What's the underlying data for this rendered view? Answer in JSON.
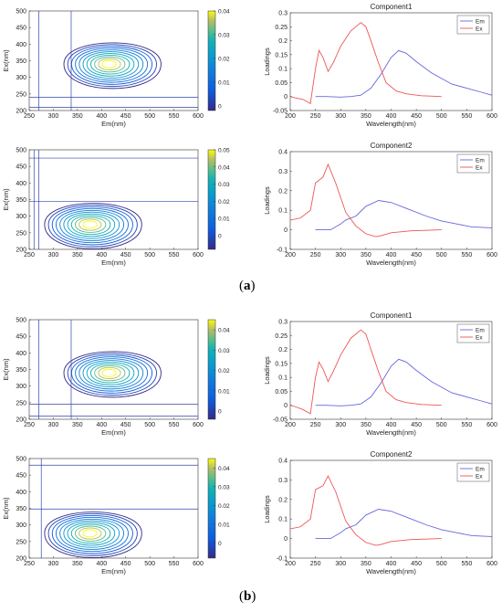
{
  "panel_labels": {
    "a": "a",
    "b": "b"
  },
  "chart_data": [
    {
      "type": "contour",
      "xlabel": "Em(nm)",
      "ylabel": "Ex(nm)",
      "xlim": [
        250,
        600
      ],
      "ylim": [
        200,
        500
      ],
      "xticks": [
        250,
        300,
        350,
        400,
        450,
        500,
        550,
        600
      ],
      "yticks": [
        200,
        250,
        300,
        350,
        400,
        450,
        500
      ],
      "colorbar": {
        "ticks": [
          "0",
          "0.01",
          "0.02",
          "0.03",
          "0.04"
        ],
        "range": [
          -0.002,
          0.04
        ]
      },
      "peak": {
        "em": 415,
        "ex": 340
      },
      "v_lines": [
        270,
        337
      ],
      "h_lines": [
        240,
        210
      ]
    },
    {
      "type": "line",
      "title": "Component1",
      "xlabel": "Wavelength(nm)",
      "ylabel": "Loadings",
      "xlim": [
        200,
        600
      ],
      "ylim": [
        -0.05,
        0.3
      ],
      "xticks": [
        200,
        250,
        300,
        350,
        400,
        450,
        500,
        550,
        600
      ],
      "yticks": [
        "-0.05",
        "0",
        "0.05",
        "0.1",
        "0.15",
        "0.2",
        "0.25",
        "0.3"
      ],
      "legend_position": "top-right",
      "series": [
        {
          "name": "Em",
          "color": "#6666dd",
          "x": [
            250,
            270,
            300,
            320,
            340,
            360,
            380,
            400,
            415,
            430,
            450,
            480,
            500,
            520,
            550,
            580,
            600
          ],
          "y": [
            0.0,
            0.0,
            -0.002,
            0.0,
            0.005,
            0.03,
            0.08,
            0.14,
            0.165,
            0.155,
            0.125,
            0.085,
            0.065,
            0.045,
            0.03,
            0.015,
            0.005
          ]
        },
        {
          "name": "Ex",
          "color": "#ee5555",
          "x": [
            200,
            210,
            225,
            240,
            250,
            257,
            265,
            275,
            285,
            300,
            320,
            340,
            350,
            360,
            375,
            390,
            410,
            430,
            460,
            500
          ],
          "y": [
            0.0,
            -0.005,
            -0.01,
            -0.025,
            0.1,
            0.165,
            0.14,
            0.09,
            0.12,
            0.18,
            0.235,
            0.265,
            0.25,
            0.2,
            0.12,
            0.05,
            0.02,
            0.01,
            0.003,
            0.0
          ]
        }
      ]
    },
    {
      "type": "contour",
      "xlabel": "Em(nm)",
      "ylabel": "Ex(nm)",
      "xlim": [
        250,
        600
      ],
      "ylim": [
        200,
        500
      ],
      "xticks": [
        250,
        300,
        350,
        400,
        450,
        500,
        550,
        600
      ],
      "yticks": [
        200,
        250,
        300,
        350,
        400,
        450,
        500
      ],
      "colorbar": {
        "ticks": [
          "0",
          "0.01",
          "0.02",
          "0.03",
          "0.04",
          "0.05"
        ],
        "range": [
          -0.008,
          0.05
        ]
      },
      "peak": {
        "em": 375,
        "ex": 275
      },
      "v_lines": [
        260,
        270
      ],
      "h_lines": [
        475,
        345
      ]
    },
    {
      "type": "line",
      "title": "Component2",
      "xlabel": "Wavelength(nm)",
      "ylabel": "Loadings",
      "xlim": [
        200,
        600
      ],
      "ylim": [
        -0.1,
        0.4
      ],
      "xticks": [
        200,
        250,
        300,
        350,
        400,
        450,
        500,
        550,
        600
      ],
      "yticks": [
        "-0.1",
        "0",
        "0.1",
        "0.2",
        "0.3",
        "0.4"
      ],
      "legend_position": "top-right",
      "series": [
        {
          "name": "Em",
          "color": "#6666dd",
          "x": [
            250,
            280,
            300,
            310,
            330,
            350,
            375,
            400,
            430,
            470,
            500,
            530,
            560,
            600
          ],
          "y": [
            0.0,
            0.0,
            0.03,
            0.05,
            0.07,
            0.12,
            0.15,
            0.14,
            0.11,
            0.07,
            0.045,
            0.03,
            0.015,
            0.01
          ]
        },
        {
          "name": "Ex",
          "color": "#ee5555",
          "x": [
            200,
            220,
            240,
            250,
            265,
            275,
            290,
            310,
            330,
            350,
            370,
            380,
            400,
            440,
            500
          ],
          "y": [
            0.05,
            0.06,
            0.1,
            0.24,
            0.27,
            0.335,
            0.24,
            0.09,
            0.02,
            -0.02,
            -0.035,
            -0.03,
            -0.015,
            -0.005,
            0.0
          ]
        }
      ]
    },
    {
      "type": "contour",
      "xlabel": "Em(nm)",
      "ylabel": "Ex(nm)",
      "xlim": [
        250,
        600
      ],
      "ylim": [
        200,
        500
      ],
      "xticks": [
        250,
        300,
        350,
        400,
        450,
        500,
        550,
        600
      ],
      "yticks": [
        200,
        250,
        300,
        350,
        400,
        450,
        500
      ],
      "colorbar": {
        "ticks": [
          "0",
          "0.01",
          "0.02",
          "0.03",
          "0.04"
        ],
        "range": [
          -0.004,
          0.045
        ]
      },
      "peak": {
        "em": 415,
        "ex": 340
      },
      "v_lines": [
        270,
        337
      ],
      "h_lines": [
        245,
        210
      ]
    },
    {
      "type": "line",
      "title": "Component1",
      "xlabel": "Wavelength(nm)",
      "ylabel": "Loadings",
      "xlim": [
        200,
        600
      ],
      "ylim": [
        -0.05,
        0.3
      ],
      "xticks": [
        200,
        250,
        300,
        350,
        400,
        450,
        500,
        550,
        600
      ],
      "yticks": [
        "-0.05",
        "0",
        "0.05",
        "0.1",
        "0.15",
        "0.2",
        "0.25",
        "0.3"
      ],
      "legend_position": "top-right",
      "series": [
        {
          "name": "Em",
          "color": "#6666dd",
          "x": [
            250,
            270,
            300,
            320,
            340,
            360,
            380,
            400,
            415,
            430,
            450,
            480,
            500,
            520,
            550,
            580,
            600
          ],
          "y": [
            0.0,
            0.0,
            -0.002,
            0.0,
            0.005,
            0.03,
            0.08,
            0.14,
            0.165,
            0.155,
            0.125,
            0.085,
            0.065,
            0.045,
            0.03,
            0.015,
            0.005
          ]
        },
        {
          "name": "Ex",
          "color": "#ee5555",
          "x": [
            200,
            210,
            225,
            240,
            250,
            257,
            265,
            275,
            285,
            300,
            320,
            340,
            350,
            360,
            375,
            390,
            410,
            430,
            460,
            500
          ],
          "y": [
            0.0,
            -0.005,
            -0.015,
            -0.03,
            0.1,
            0.155,
            0.13,
            0.085,
            0.12,
            0.18,
            0.24,
            0.27,
            0.255,
            0.2,
            0.12,
            0.05,
            0.02,
            0.01,
            0.003,
            0.0
          ]
        }
      ]
    },
    {
      "type": "contour",
      "xlabel": "Em(nm)",
      "ylabel": "Ex(nm)",
      "xlim": [
        250,
        600
      ],
      "ylim": [
        200,
        500
      ],
      "xticks": [
        250,
        300,
        350,
        400,
        450,
        500,
        550,
        600
      ],
      "yticks": [
        200,
        250,
        300,
        350,
        400,
        450,
        500
      ],
      "colorbar": {
        "ticks": [
          "0",
          "0.01",
          "0.02",
          "0.03",
          "0.04"
        ],
        "range": [
          -0.008,
          0.045
        ]
      },
      "peak": {
        "em": 375,
        "ex": 275
      },
      "v_lines": [
        275
      ],
      "h_lines": [
        480,
        348
      ]
    },
    {
      "type": "line",
      "title": "Component2",
      "xlabel": "Wavelength(nm)",
      "ylabel": "Loadings",
      "xlim": [
        200,
        600
      ],
      "ylim": [
        -0.1,
        0.4
      ],
      "xticks": [
        200,
        250,
        300,
        350,
        400,
        450,
        500,
        550,
        600
      ],
      "yticks": [
        "-0.1",
        "0",
        "0.1",
        "0.2",
        "0.3",
        "0.4"
      ],
      "legend_position": "top-right",
      "series": [
        {
          "name": "Em",
          "color": "#6666dd",
          "x": [
            250,
            280,
            300,
            310,
            330,
            350,
            375,
            400,
            430,
            470,
            500,
            530,
            560,
            600
          ],
          "y": [
            0.0,
            0.0,
            0.03,
            0.05,
            0.07,
            0.12,
            0.15,
            0.14,
            0.11,
            0.07,
            0.045,
            0.03,
            0.015,
            0.01
          ]
        },
        {
          "name": "Ex",
          "color": "#ee5555",
          "x": [
            200,
            220,
            240,
            250,
            265,
            275,
            290,
            310,
            330,
            350,
            370,
            380,
            400,
            440,
            500
          ],
          "y": [
            0.05,
            0.06,
            0.1,
            0.25,
            0.27,
            0.32,
            0.24,
            0.09,
            0.02,
            -0.02,
            -0.035,
            -0.03,
            -0.015,
            -0.005,
            0.0
          ]
        }
      ]
    }
  ]
}
